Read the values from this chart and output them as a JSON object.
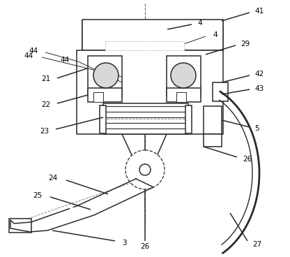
{
  "bg": "white",
  "lc": "#2a2a2a",
  "lw": 1.1,
  "label_fs": 7.5,
  "fig_w": 4.16,
  "fig_h": 3.68,
  "dpi": 100
}
